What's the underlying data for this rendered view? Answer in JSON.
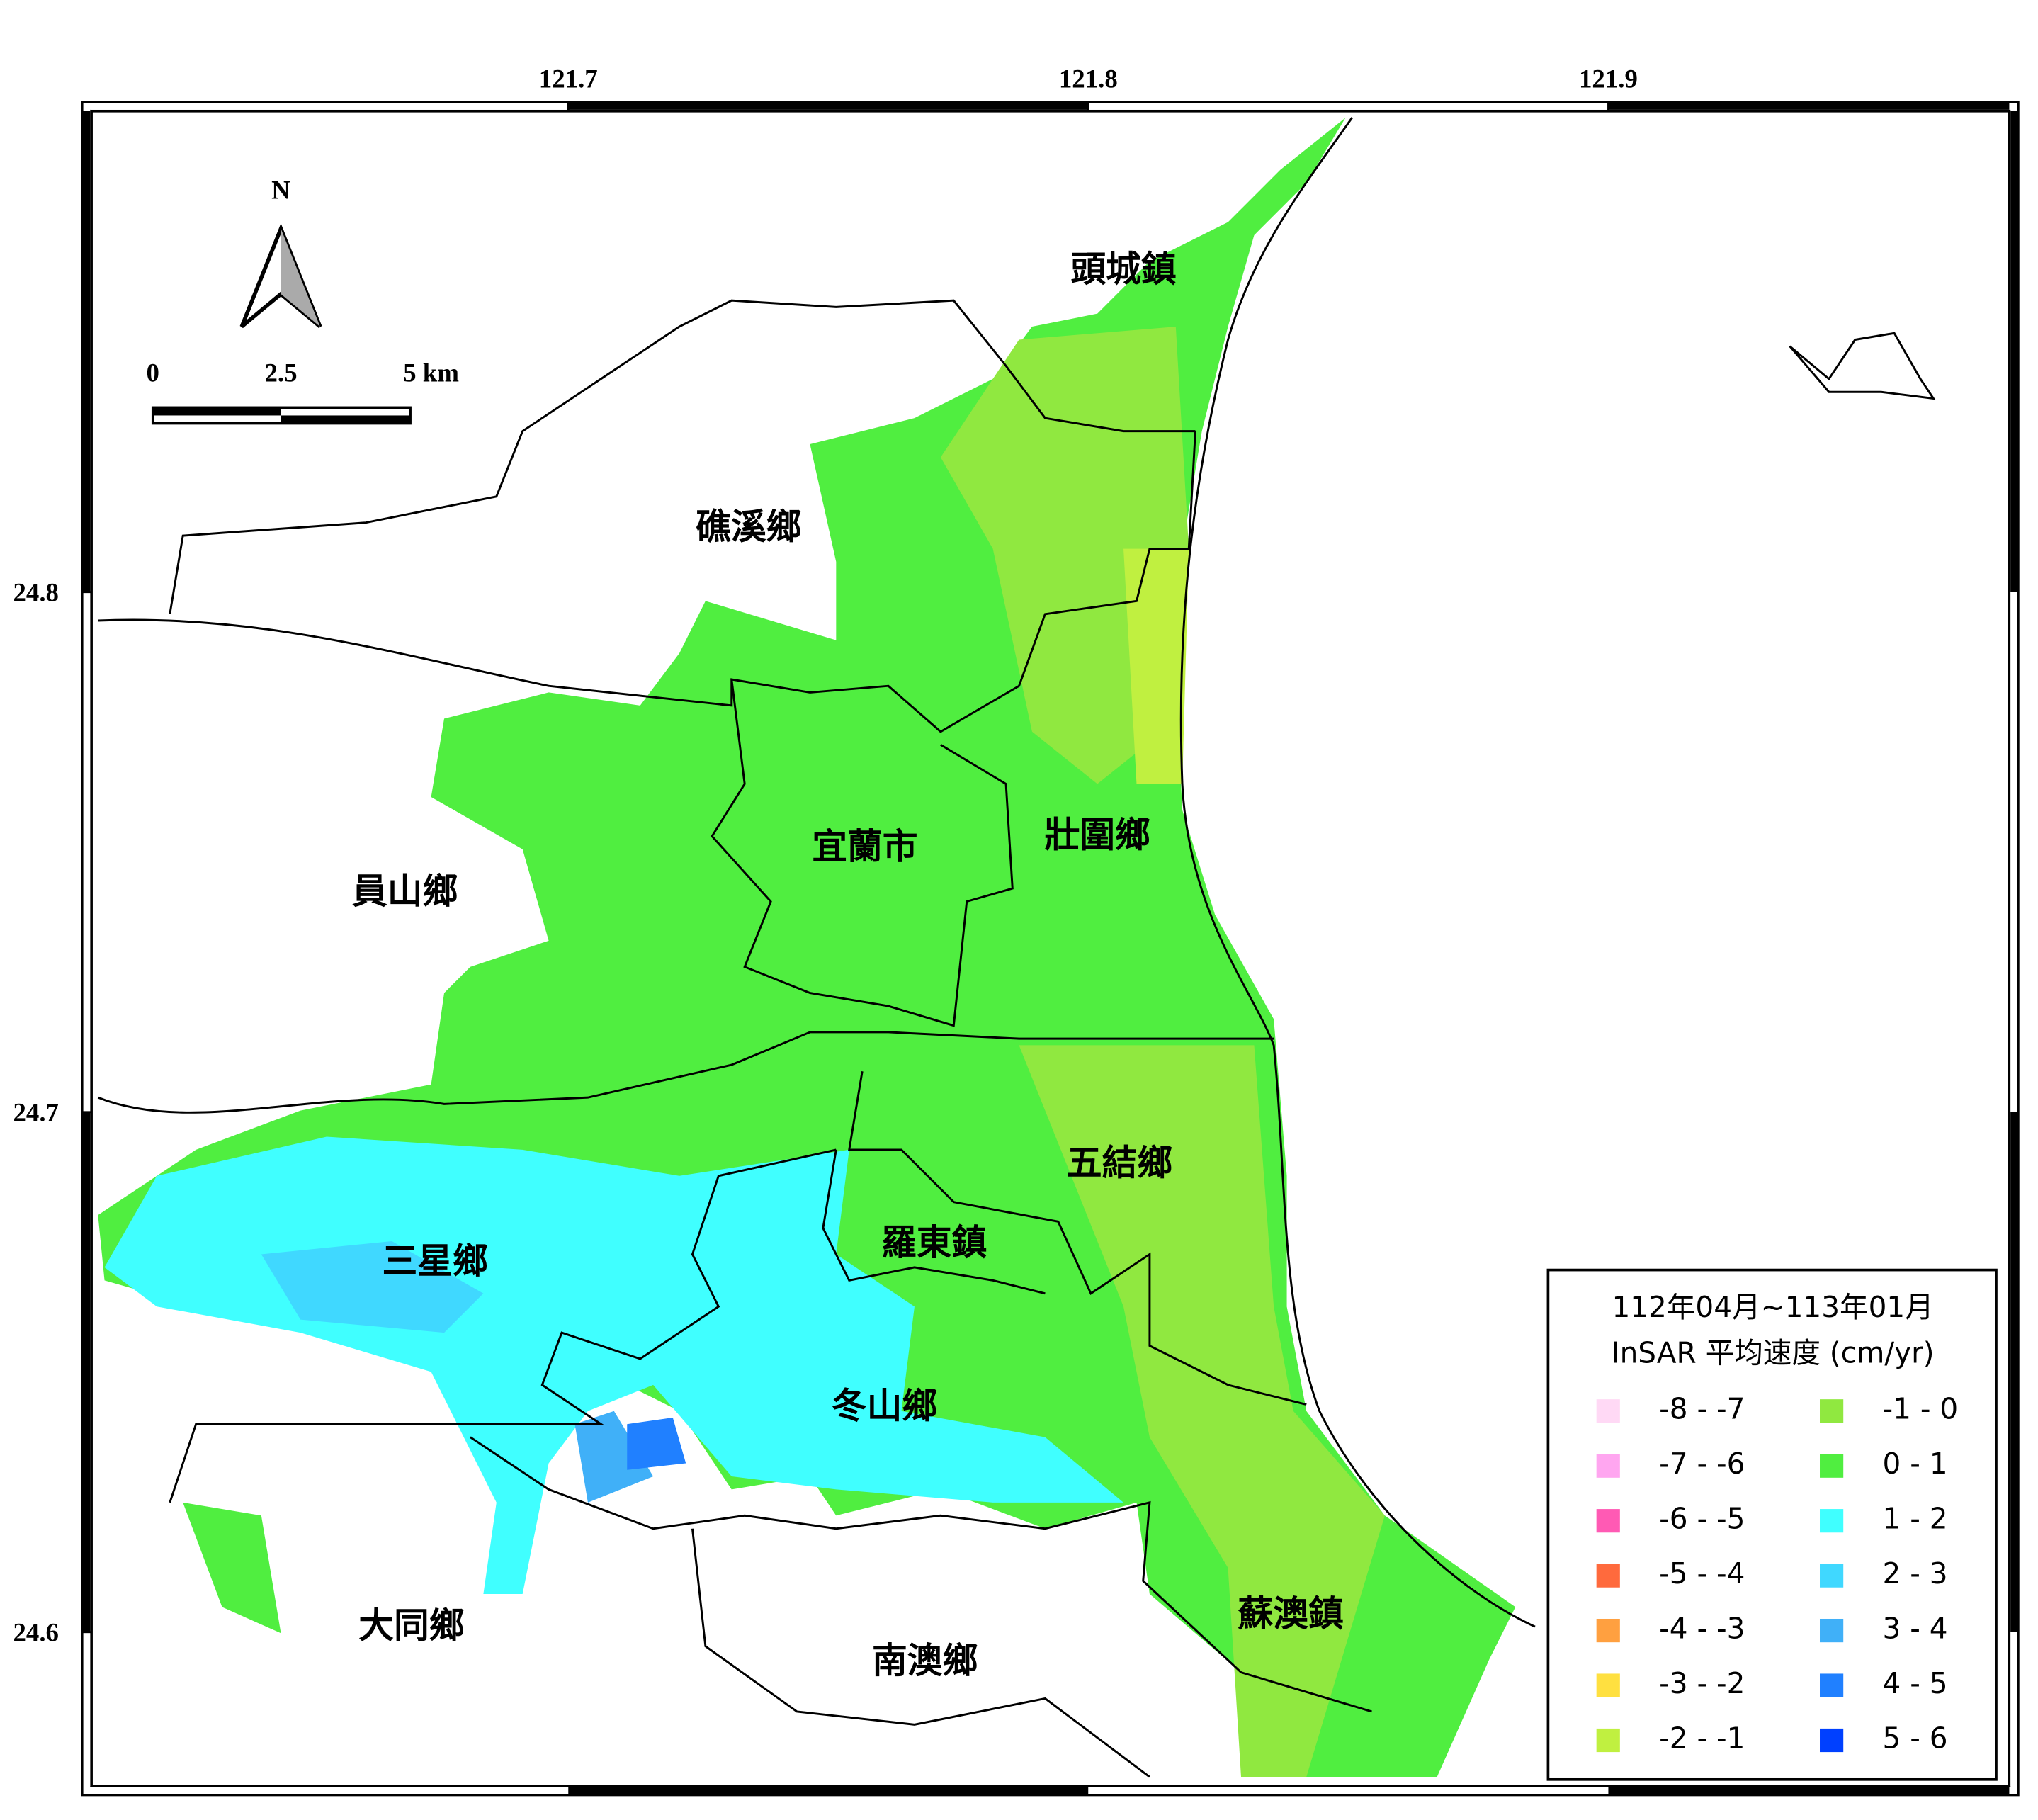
{
  "map": {
    "north": "N",
    "scale_labels": [
      "0",
      "2.5",
      "5 km"
    ],
    "xlim": [
      121.6083,
      121.9771
    ],
    "ylim": [
      24.5704,
      24.8925
    ],
    "xticks": [
      121.7,
      121.8,
      121.9
    ],
    "yticks": [
      24.8,
      24.7,
      24.6
    ],
    "townships": [
      "頭城鎮",
      "礁溪鄉",
      "員山鄉",
      "宜蘭市",
      "壯圍鄉",
      "五結鄉",
      "三星鄉",
      "羅東鎮",
      "冬山鄉",
      "大同鄉",
      "南澳鄉",
      "蘇澳鎮"
    ],
    "legend": {
      "title": [
        "112年04月~113年01月",
        "InSAR 平均速度 (cm/yr)"
      ],
      "classes": [
        {
          "label": "-8 - -7",
          "color": "#ffd9f5"
        },
        {
          "label": "-7 - -6",
          "color": "#ffa6f0"
        },
        {
          "label": "-6 - -5",
          "color": "#ff5ab4"
        },
        {
          "label": "-5 - -4",
          "color": "#ff6a3d"
        },
        {
          "label": "-4 - -3",
          "color": "#ffa040"
        },
        {
          "label": "-3 - -2",
          "color": "#ffe040"
        },
        {
          "label": "-2 - -1",
          "color": "#c0f040"
        },
        {
          "label": "-1 - 0",
          "color": "#90e840"
        },
        {
          "label": "0 - 1",
          "color": "#50ee40"
        },
        {
          "label": "1 - 2",
          "color": "#40ffff"
        },
        {
          "label": "2 - 3",
          "color": "#40d8ff"
        },
        {
          "label": "3 - 4",
          "color": "#40b0f8"
        },
        {
          "label": "4 - 5",
          "color": "#2080ff"
        },
        {
          "label": "5 - 6",
          "color": "#0040ff"
        }
      ]
    }
  }
}
